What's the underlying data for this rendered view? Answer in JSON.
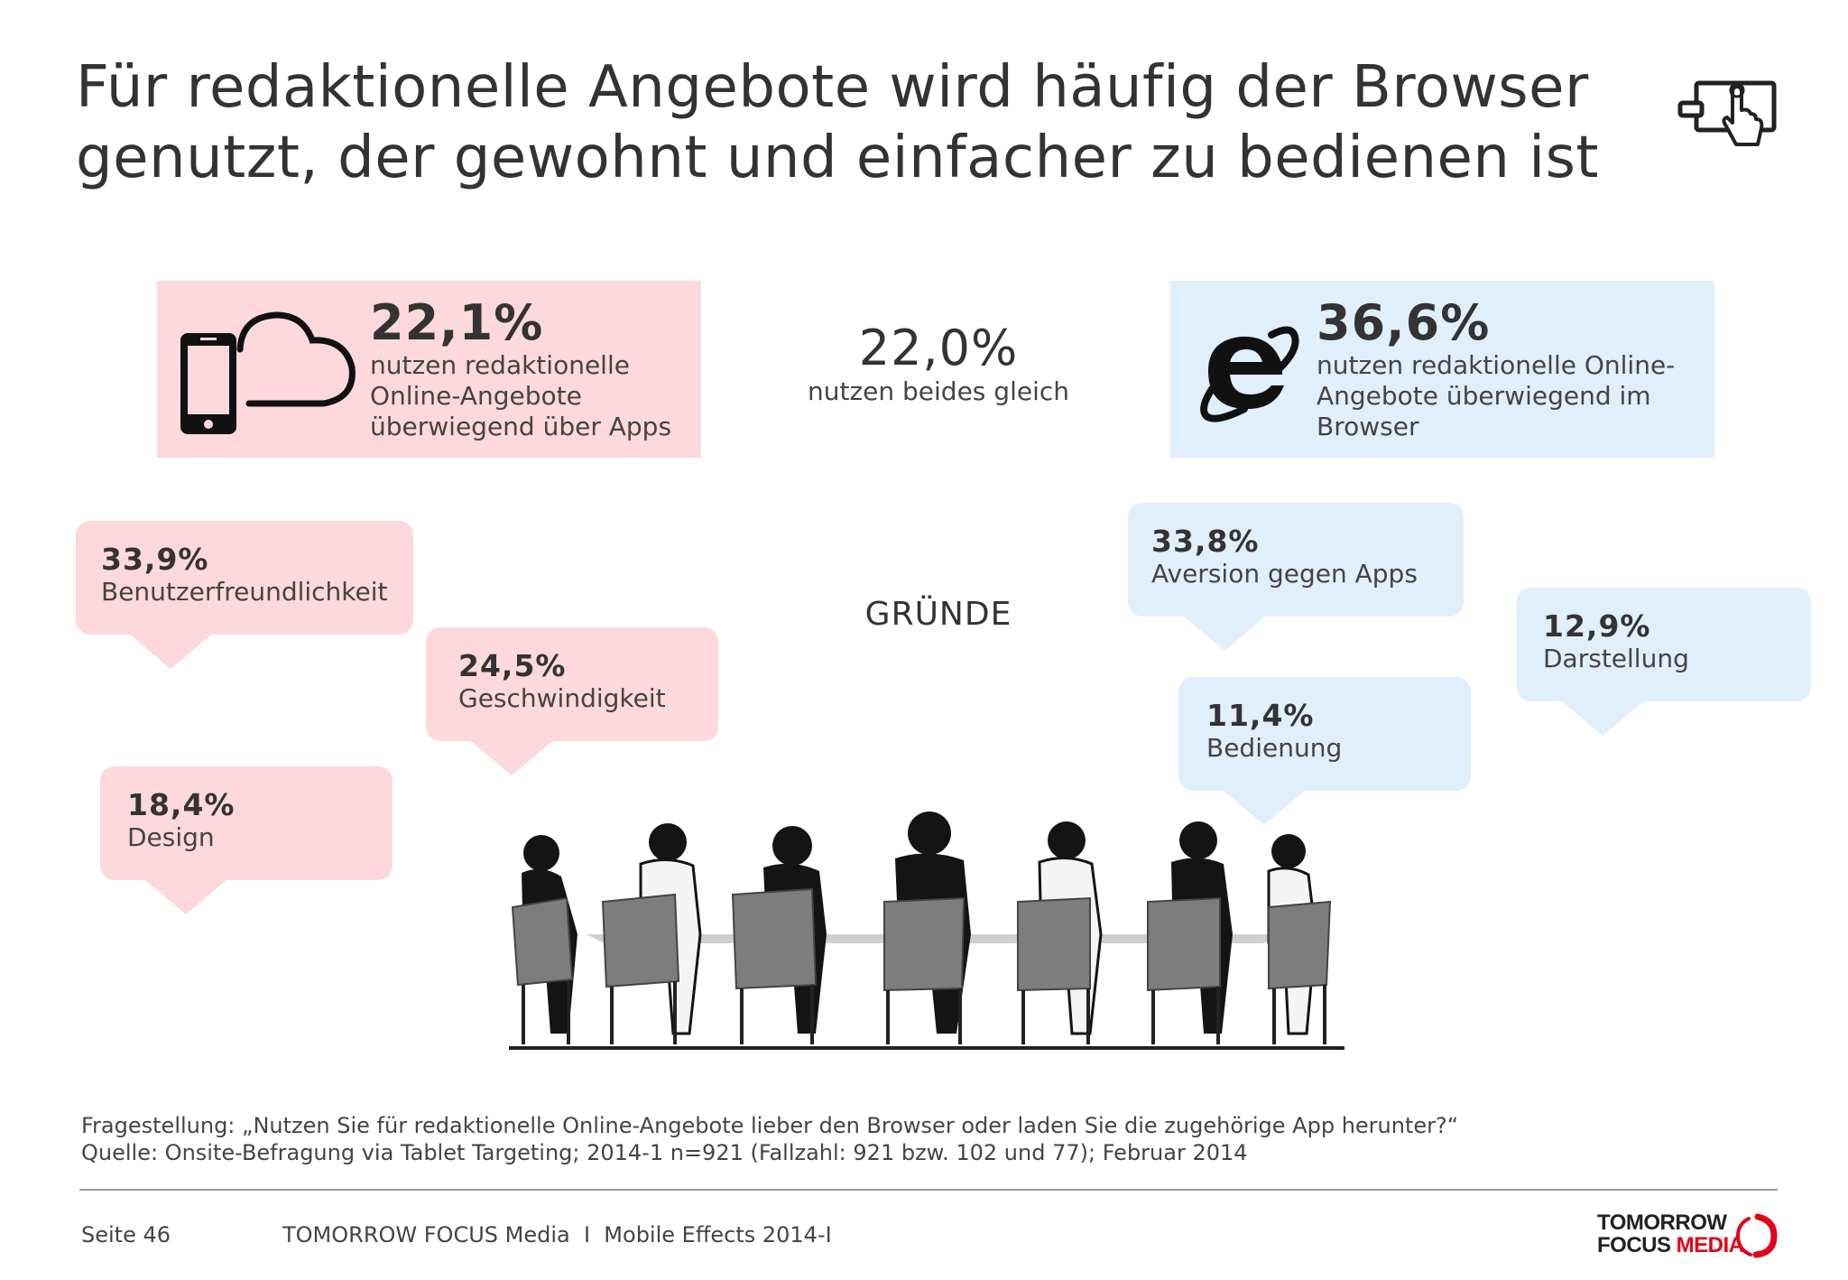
{
  "header": {
    "title_line1": "Für redaktionelle Angebote wird häufig der Browser",
    "title_line2": "genutzt, der gewohnt und einfacher zu bedienen ist"
  },
  "icons": {
    "header": "tablet-touch-icon",
    "apps": "smartphone-cloud-icon",
    "browser": "internet-explorer-icon"
  },
  "apps_stat": {
    "percent": "22,1%",
    "desc_line1": "nutzen redaktionelle",
    "desc_line2": "Online-Angebote",
    "desc_line3": "überwiegend über Apps"
  },
  "both_stat": {
    "percent": "22,0%",
    "desc": "nutzen beides gleich"
  },
  "browser_stat": {
    "percent": "36,6%",
    "desc_line1": "nutzen redaktionelle Online-",
    "desc_line2": "Angebote überwiegend im",
    "desc_line3": "Browser"
  },
  "reasons_label": "GRÜNDE",
  "reasons_apps": [
    {
      "percent": "33,9%",
      "label": "Benutzerfreundlichkeit"
    },
    {
      "percent": "24,5%",
      "label": "Geschwindigkeit"
    },
    {
      "percent": "18,4%",
      "label": "Design"
    }
  ],
  "reasons_browser": [
    {
      "percent": "33,8%",
      "label": "Aversion gegen Apps"
    },
    {
      "percent": "12,9%",
      "label": "Darstellung"
    },
    {
      "percent": "11,4%",
      "label": "Bedienung"
    }
  ],
  "source": {
    "question": "Fragestellung: „Nutzen Sie für redaktionelle Online-Angebote lieber den Browser oder laden Sie die zugehörige App herunter?“",
    "source_line": "Quelle: Onsite-Befragung via Tablet Targeting; 2014-1 n=921 (Fallzahl: 921 bzw. 102 und 77); Februar 2014"
  },
  "footer": {
    "page": "Seite 46",
    "center": "TOMORROW FOCUS Media  I  Mobile Effects 2014-I"
  },
  "logo": {
    "line1": "TOMORROW",
    "line2a": "FOCUS ",
    "line2b": "MEDIA"
  },
  "colors": {
    "pink": "#fdd8dc",
    "blue": "#e1eefc",
    "logo_red": "#e2001a"
  }
}
